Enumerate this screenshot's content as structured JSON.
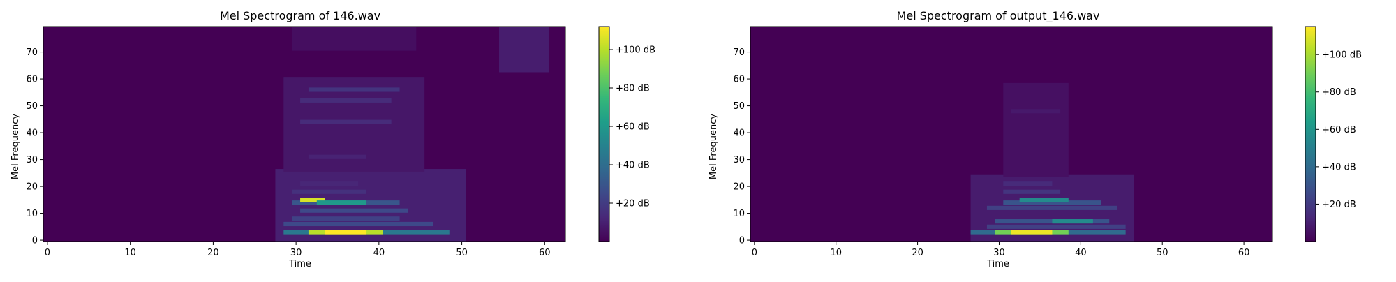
{
  "figure": {
    "background": "#ffffff",
    "colormap": [
      "#440154",
      "#482878",
      "#3e4989",
      "#31688e",
      "#26828e",
      "#1f9e89",
      "#35b779",
      "#6ece58",
      "#b5de2b",
      "#fde725"
    ]
  },
  "chart_data": [
    {
      "type": "heatmap",
      "title": "Mel Spectrogram of 146.wav",
      "xlabel": "Time",
      "ylabel": "Mel Frequency",
      "xlim": [
        -0.5,
        62.5
      ],
      "ylim": [
        -0.5,
        79.5
      ],
      "xticks": [
        0,
        10,
        20,
        30,
        40,
        50,
        60
      ],
      "xtick_labels": [
        "0",
        "10",
        "20",
        "30",
        "40",
        "50",
        "60"
      ],
      "yticks": [
        0,
        10,
        20,
        30,
        40,
        50,
        60,
        70
      ],
      "ytick_labels": [
        "0",
        "10",
        "20",
        "30",
        "40",
        "50",
        "60",
        "70"
      ],
      "colorbar": {
        "range": [
          0,
          112
        ],
        "ticks": [
          20,
          40,
          60,
          80,
          100
        ],
        "tick_labels": [
          "+20 dB",
          "+40 dB",
          "+60 dB",
          "+80 dB",
          "+100 dB"
        ]
      },
      "regions": [
        {
          "x": [
            28,
            50
          ],
          "y": [
            0,
            26
          ],
          "value": 10
        },
        {
          "x": [
            29,
            45
          ],
          "y": [
            26,
            60
          ],
          "value": 7
        },
        {
          "x": [
            30,
            44
          ],
          "y": [
            71,
            79
          ],
          "value": 4
        },
        {
          "x": [
            55,
            60
          ],
          "y": [
            63,
            79
          ],
          "value": 9
        }
      ],
      "streaks": [
        {
          "x": [
            29,
            48
          ],
          "y": 3,
          "value": 45
        },
        {
          "x": [
            32,
            40
          ],
          "y": 3,
          "value": 100
        },
        {
          "x": [
            34,
            38
          ],
          "y": 3,
          "value": 112
        },
        {
          "x": [
            29,
            46
          ],
          "y": 6,
          "value": 25
        },
        {
          "x": [
            30,
            42
          ],
          "y": 8,
          "value": 22
        },
        {
          "x": [
            31,
            43
          ],
          "y": 11,
          "value": 25
        },
        {
          "x": [
            30,
            42
          ],
          "y": 14,
          "value": 30
        },
        {
          "x": [
            31,
            33
          ],
          "y": 15,
          "value": 105
        },
        {
          "x": [
            33,
            38
          ],
          "y": 14,
          "value": 60
        },
        {
          "x": [
            30,
            38
          ],
          "y": 18,
          "value": 16
        },
        {
          "x": [
            31,
            37
          ],
          "y": 21,
          "value": 12
        },
        {
          "x": [
            32,
            38
          ],
          "y": 31,
          "value": 11
        },
        {
          "x": [
            31,
            41
          ],
          "y": 44,
          "value": 14
        },
        {
          "x": [
            31,
            41
          ],
          "y": 52,
          "value": 14
        },
        {
          "x": [
            32,
            42
          ],
          "y": 56,
          "value": 17
        }
      ]
    },
    {
      "type": "heatmap",
      "title": "Mel Spectrogram of output_146.wav",
      "xlabel": "Time",
      "ylabel": "Mel Frequency",
      "xlim": [
        -0.5,
        63.5
      ],
      "ylim": [
        -0.5,
        79.5
      ],
      "xticks": [
        0,
        10,
        20,
        30,
        40,
        50,
        60
      ],
      "xtick_labels": [
        "0",
        "10",
        "20",
        "30",
        "40",
        "50",
        "60"
      ],
      "yticks": [
        0,
        10,
        20,
        30,
        40,
        50,
        60,
        70
      ],
      "ytick_labels": [
        "0",
        "10",
        "20",
        "30",
        "40",
        "50",
        "60",
        "70"
      ],
      "colorbar": {
        "range": [
          0,
          115
        ],
        "ticks": [
          20,
          40,
          60,
          80,
          100
        ],
        "tick_labels": [
          "+20 dB",
          "+40 dB",
          "+60 dB",
          "+80 dB",
          "+100 dB"
        ]
      },
      "regions": [
        {
          "x": [
            27,
            46
          ],
          "y": [
            0,
            24
          ],
          "value": 9
        },
        {
          "x": [
            31,
            38
          ],
          "y": [
            24,
            58
          ],
          "value": 5
        }
      ],
      "streaks": [
        {
          "x": [
            27,
            45
          ],
          "y": 3,
          "value": 40
        },
        {
          "x": [
            30,
            38
          ],
          "y": 3,
          "value": 90
        },
        {
          "x": [
            32,
            36
          ],
          "y": 3,
          "value": 112
        },
        {
          "x": [
            29,
            45
          ],
          "y": 5,
          "value": 22
        },
        {
          "x": [
            30,
            43
          ],
          "y": 7,
          "value": 30
        },
        {
          "x": [
            37,
            41
          ],
          "y": 7,
          "value": 55
        },
        {
          "x": [
            29,
            44
          ],
          "y": 12,
          "value": 22
        },
        {
          "x": [
            31,
            42
          ],
          "y": 14,
          "value": 30
        },
        {
          "x": [
            33,
            38
          ],
          "y": 15,
          "value": 55
        },
        {
          "x": [
            31,
            37
          ],
          "y": 18,
          "value": 18
        },
        {
          "x": [
            31,
            36
          ],
          "y": 21,
          "value": 14
        },
        {
          "x": [
            32,
            37
          ],
          "y": 48,
          "value": 8
        }
      ]
    }
  ]
}
